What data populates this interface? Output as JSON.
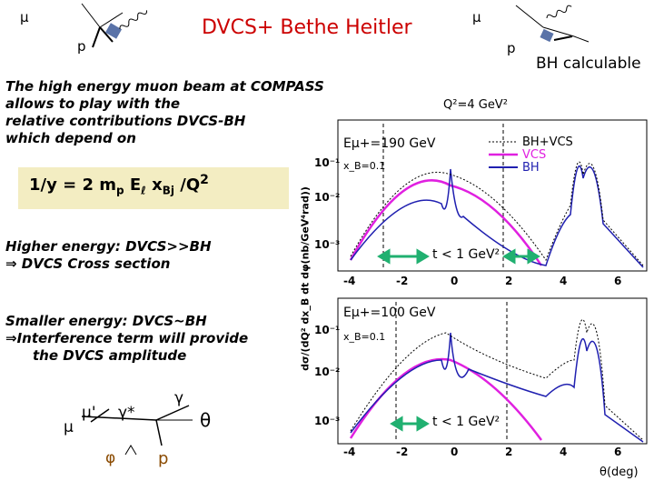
{
  "header": {
    "title": "DVCS+ Bethe Heitler",
    "mu_left": "μ",
    "p_left": "p",
    "mu_right": "μ",
    "p_right": "p",
    "bh_calculable": "BH calculable"
  },
  "intro": {
    "line1": "The high energy muon beam at COMPASS",
    "line2": "allows to play with the",
    "line3": "relative contributions DVCS-BH",
    "line4": "which depend on"
  },
  "formula": {
    "lhs": "1/y = 2 m",
    "m_sub": "p",
    "e": " E",
    "e_sub": "ℓ",
    "x": " x",
    "x_sub": "Bj",
    "q": " /Q",
    "q_sup": "2"
  },
  "higher": {
    "line1": "Higher energy: DVCS>>BH",
    "line2": "⇒ DVCS Cross section"
  },
  "smaller": {
    "line1": "Smaller energy: DVCS~BH",
    "line2": "⇒Interference term will provide",
    "line3": "the DVCS amplitude"
  },
  "kinematics": {
    "mu": "μ",
    "mu_prime": "μ'",
    "gamma_star": "γ*",
    "gamma": "γ",
    "theta": "θ",
    "phi": "φ",
    "p": "p"
  },
  "plot": {
    "q2": "Q²=4 GeV²",
    "ylabel": "dσ/(dQ² dx_B dt dφ(nb/GeV⁴rad))",
    "xlabel": "θ(deg)",
    "top_energy": "Eμ+=190 GeV",
    "bottom_energy": "Eμ+=100 GeV",
    "xb_top": "x_B=0.1",
    "xb_bottom": "x_B=0.1",
    "t_cut_top": "t < 1 GeV²",
    "t_cut_bottom": "t < 1 GeV²",
    "legend": [
      "BH+VCS",
      "VCS",
      "BH"
    ],
    "x_ticks": [
      "-4",
      "-2",
      "0",
      "2",
      "4",
      "6"
    ],
    "y_ticks_top": [
      "10⁻¹",
      "10⁻²",
      "10⁻³"
    ],
    "y_ticks_bottom": [
      "10⁻¹",
      "10⁻²",
      "10⁻³"
    ],
    "colors": {
      "bh_vcs": "#000000",
      "vcs": "#e020e0",
      "bh": "#2020b0",
      "arrow": "#20b070"
    }
  }
}
